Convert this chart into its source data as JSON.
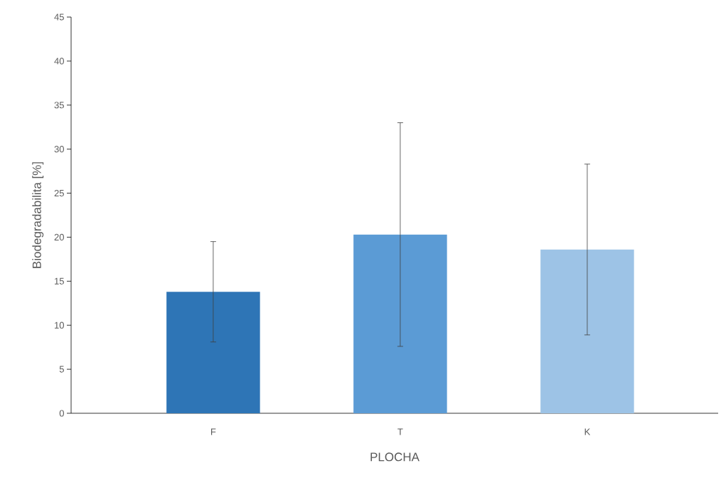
{
  "chart_data": {
    "type": "bar",
    "xlabel": "PLOCHA",
    "ylabel": "Biodegradabilita [%]",
    "categories": [
      "F",
      "T",
      "K"
    ],
    "values": [
      13.8,
      20.3,
      18.6
    ],
    "errors": [
      5.7,
      12.7,
      9.7
    ],
    "colors": [
      "#2e75b6",
      "#5b9bd5",
      "#9dc3e6"
    ],
    "ylim": [
      0,
      45
    ],
    "yticks": [
      0,
      5,
      10,
      15,
      20,
      25,
      30,
      35,
      40,
      45
    ],
    "grid": false
  }
}
